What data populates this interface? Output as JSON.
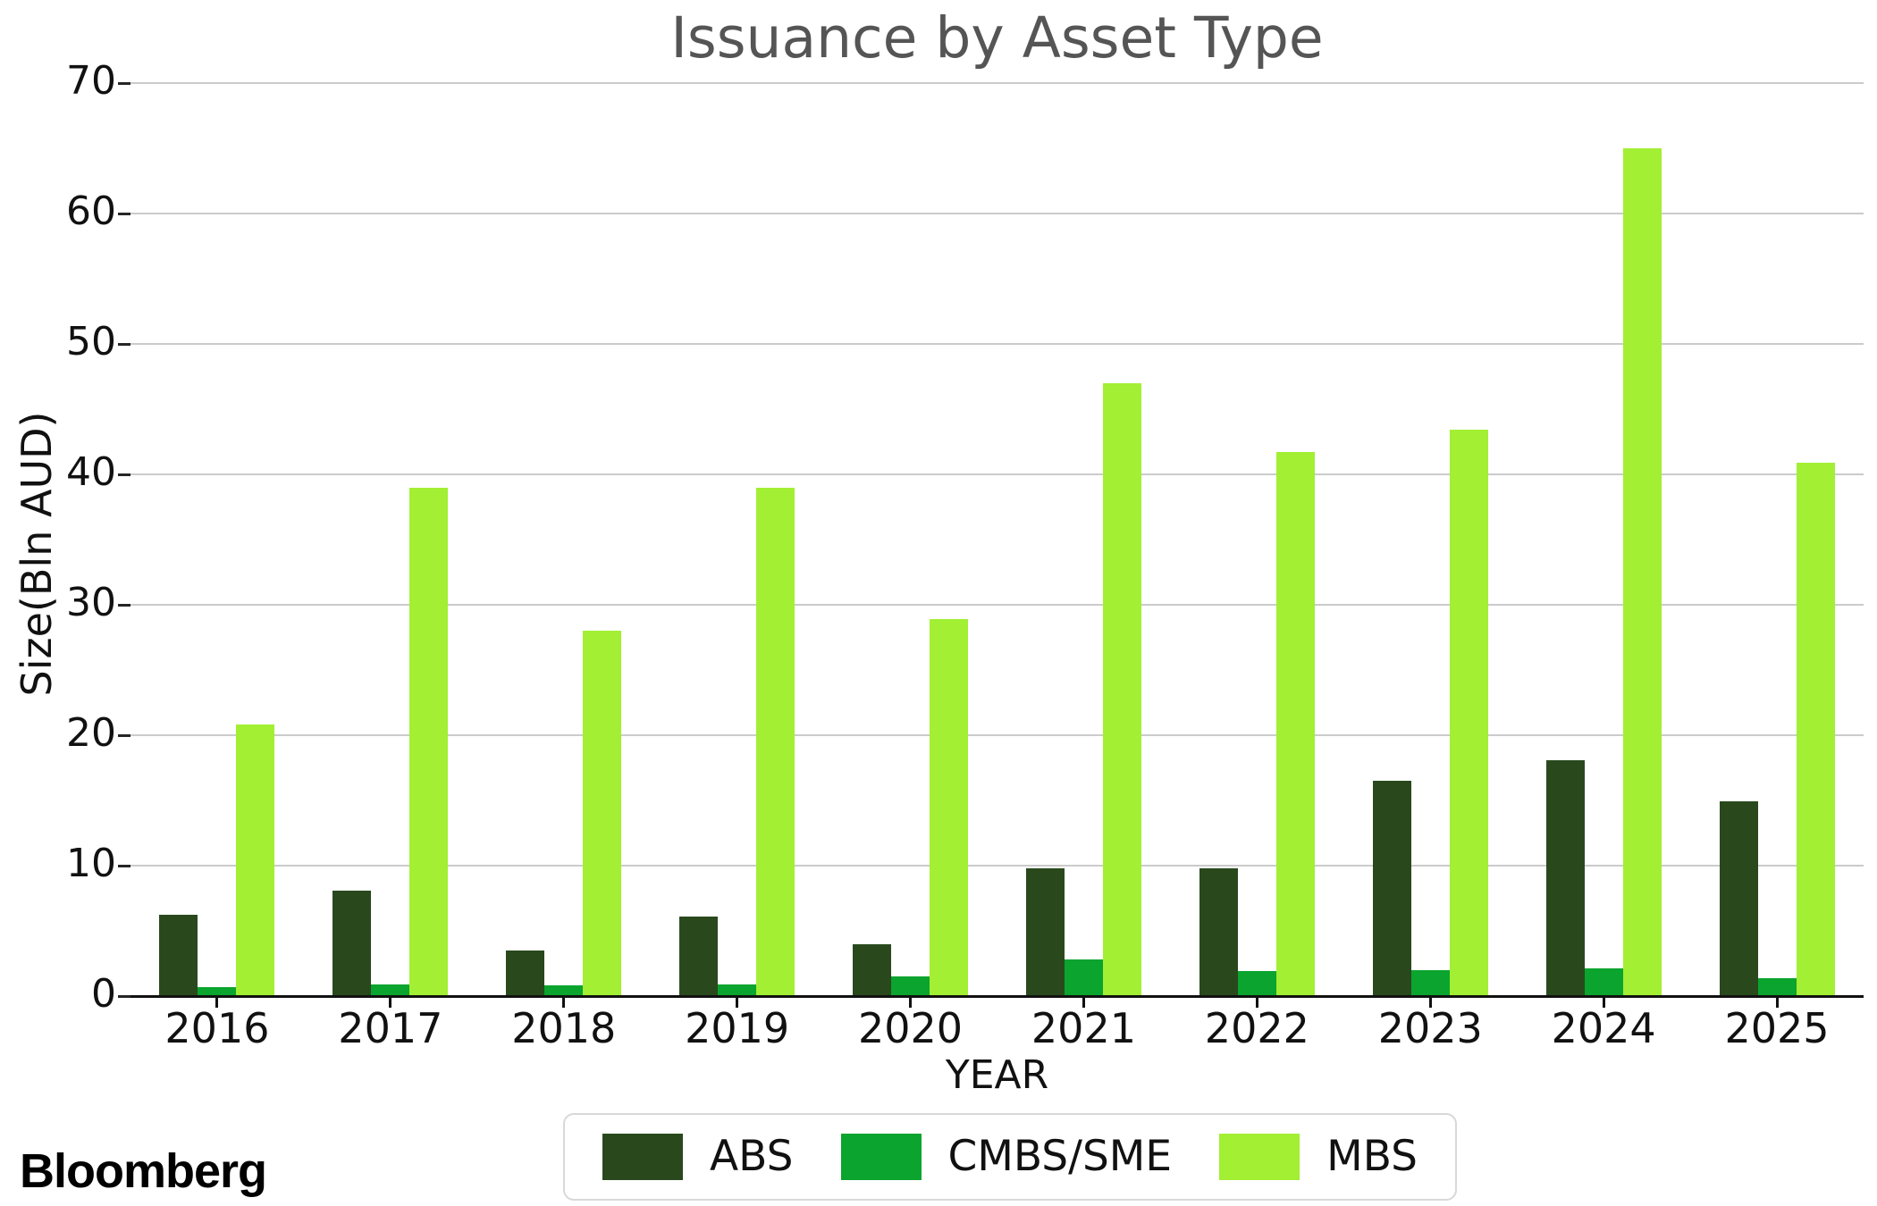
{
  "branding": "Bloomberg",
  "chart_data": {
    "type": "bar",
    "title": "Issuance by Asset Type",
    "xlabel": "YEAR",
    "ylabel": "Size(Bln AUD)",
    "categories": [
      "2016",
      "2017",
      "2018",
      "2019",
      "2020",
      "2021",
      "2022",
      "2023",
      "2024",
      "2025"
    ],
    "series": [
      {
        "name": "ABS",
        "color": "#29491d",
        "values": [
          6.2,
          8.1,
          3.5,
          6.1,
          4.0,
          9.8,
          9.8,
          16.5,
          18.1,
          14.9
        ]
      },
      {
        "name": "CMBS/SME",
        "color": "#0aa42e",
        "values": [
          0.7,
          0.9,
          0.8,
          0.9,
          1.5,
          2.8,
          1.9,
          2.0,
          2.1,
          1.4
        ]
      },
      {
        "name": "MBS",
        "color": "#a2ef33",
        "values": [
          20.8,
          39.0,
          28.0,
          39.0,
          28.9,
          47.0,
          41.7,
          43.4,
          65.0,
          40.9
        ]
      }
    ],
    "ylim": [
      0,
      70
    ],
    "yticks": [
      0,
      10,
      20,
      30,
      40,
      50,
      60,
      70
    ],
    "grid": "horizontal",
    "gridline_color": "#cbcbcb",
    "axis_color": "#111111",
    "title_color": "#555555",
    "legend_position": "bottom-center"
  }
}
